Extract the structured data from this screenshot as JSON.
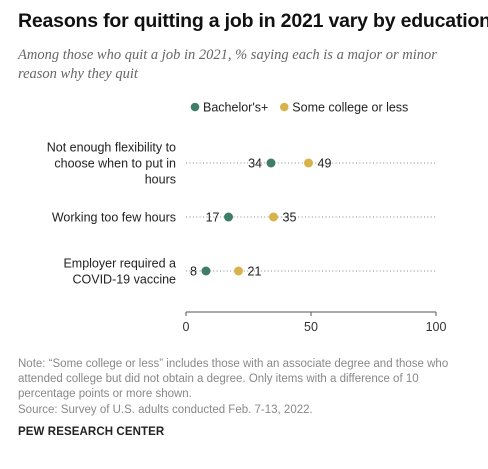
{
  "title": "Reasons for quitting a job in 2021 vary by education",
  "subtitle": "Among those who quit a job in 2021, % saying each is a major or minor reason why they quit",
  "note": "Note: “Some college or less” includes those with an associate degree and those who attended college but did not obtain a degree. Only items with a difference of 10 percentage points or more shown.",
  "source": "Source: Survey of U.S. adults conducted Feb. 7-13, 2022.",
  "brand": "PEW RESEARCH CENTER",
  "colors": {
    "bachelors": "#3f7d67",
    "some_college": "#d8b24a",
    "dots": "#888888",
    "axis": "#555555"
  },
  "chart_data": {
    "type": "scatter",
    "legend_position": "top",
    "xlim": [
      0,
      100
    ],
    "x_ticks": [
      "0",
      "50",
      "100"
    ],
    "categories": [
      [
        "Not enough flexibility to",
        "choose when to put in",
        "hours"
      ],
      [
        "Working too few hours"
      ],
      [
        "Employer required a",
        "COVID-19 vaccine"
      ]
    ],
    "series": [
      {
        "name": "Bachelor's+",
        "values": [
          34,
          17,
          8
        ]
      },
      {
        "name": "Some college or less",
        "values": [
          49,
          35,
          21
        ]
      }
    ]
  }
}
